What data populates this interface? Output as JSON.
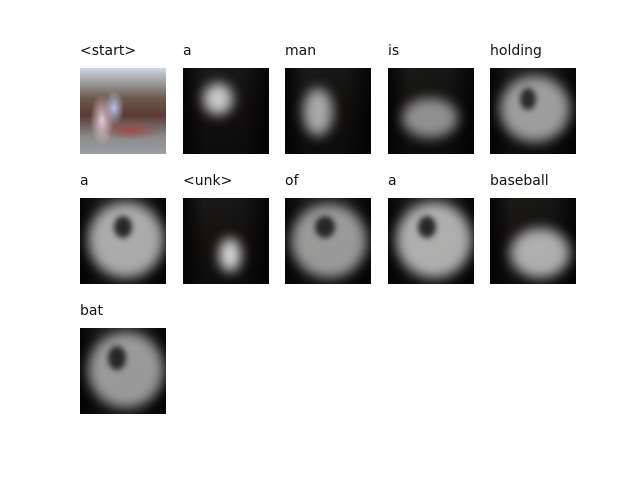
{
  "words": [
    {
      "text": "<start>"
    },
    {
      "text": "a"
    },
    {
      "text": "man"
    },
    {
      "text": "is"
    },
    {
      "text": "holding"
    },
    {
      "text": "a"
    },
    {
      "text": "<unk>"
    },
    {
      "text": "of"
    },
    {
      "text": "a"
    },
    {
      "text": "baseball"
    },
    {
      "text": "bat"
    }
  ]
}
